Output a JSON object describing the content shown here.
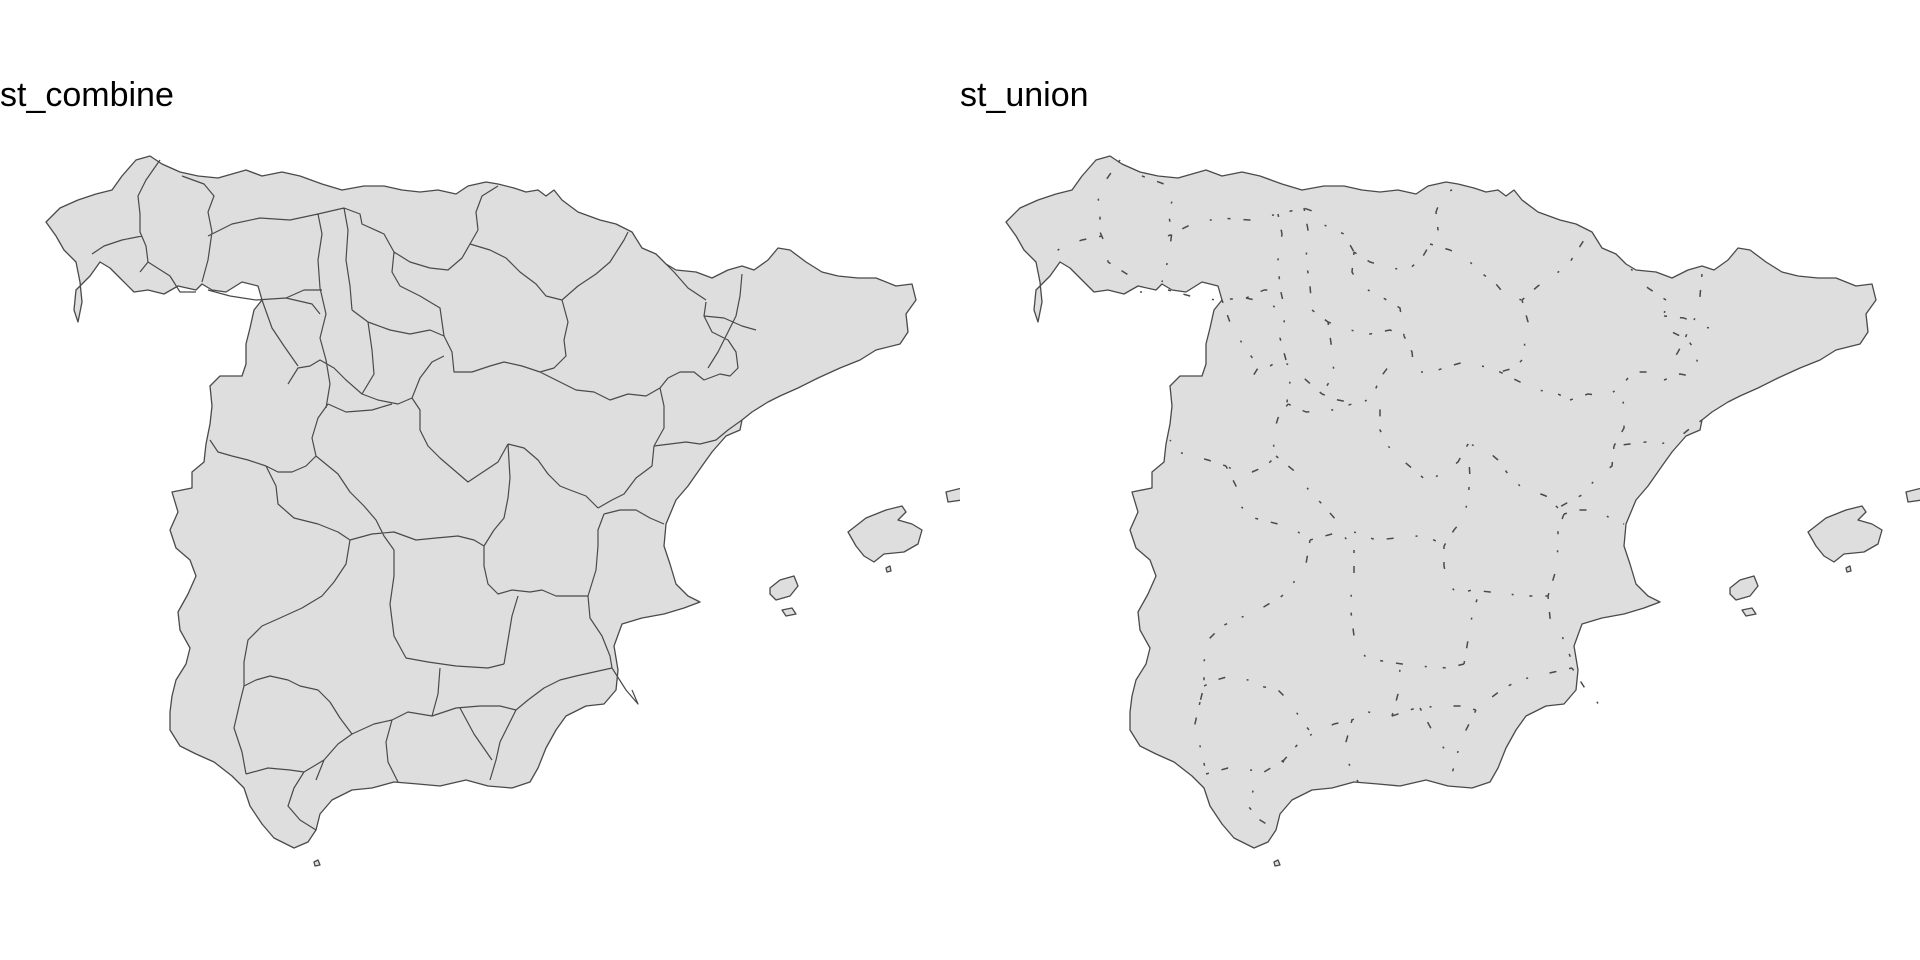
{
  "panels": [
    {
      "title": "st_combine",
      "internal_borders": "solid"
    },
    {
      "title": "st_union",
      "internal_borders": "fragmentary"
    }
  ],
  "colors": {
    "land_fill": "#dedede",
    "border": "#4a4a4a",
    "background": "#ffffff"
  }
}
